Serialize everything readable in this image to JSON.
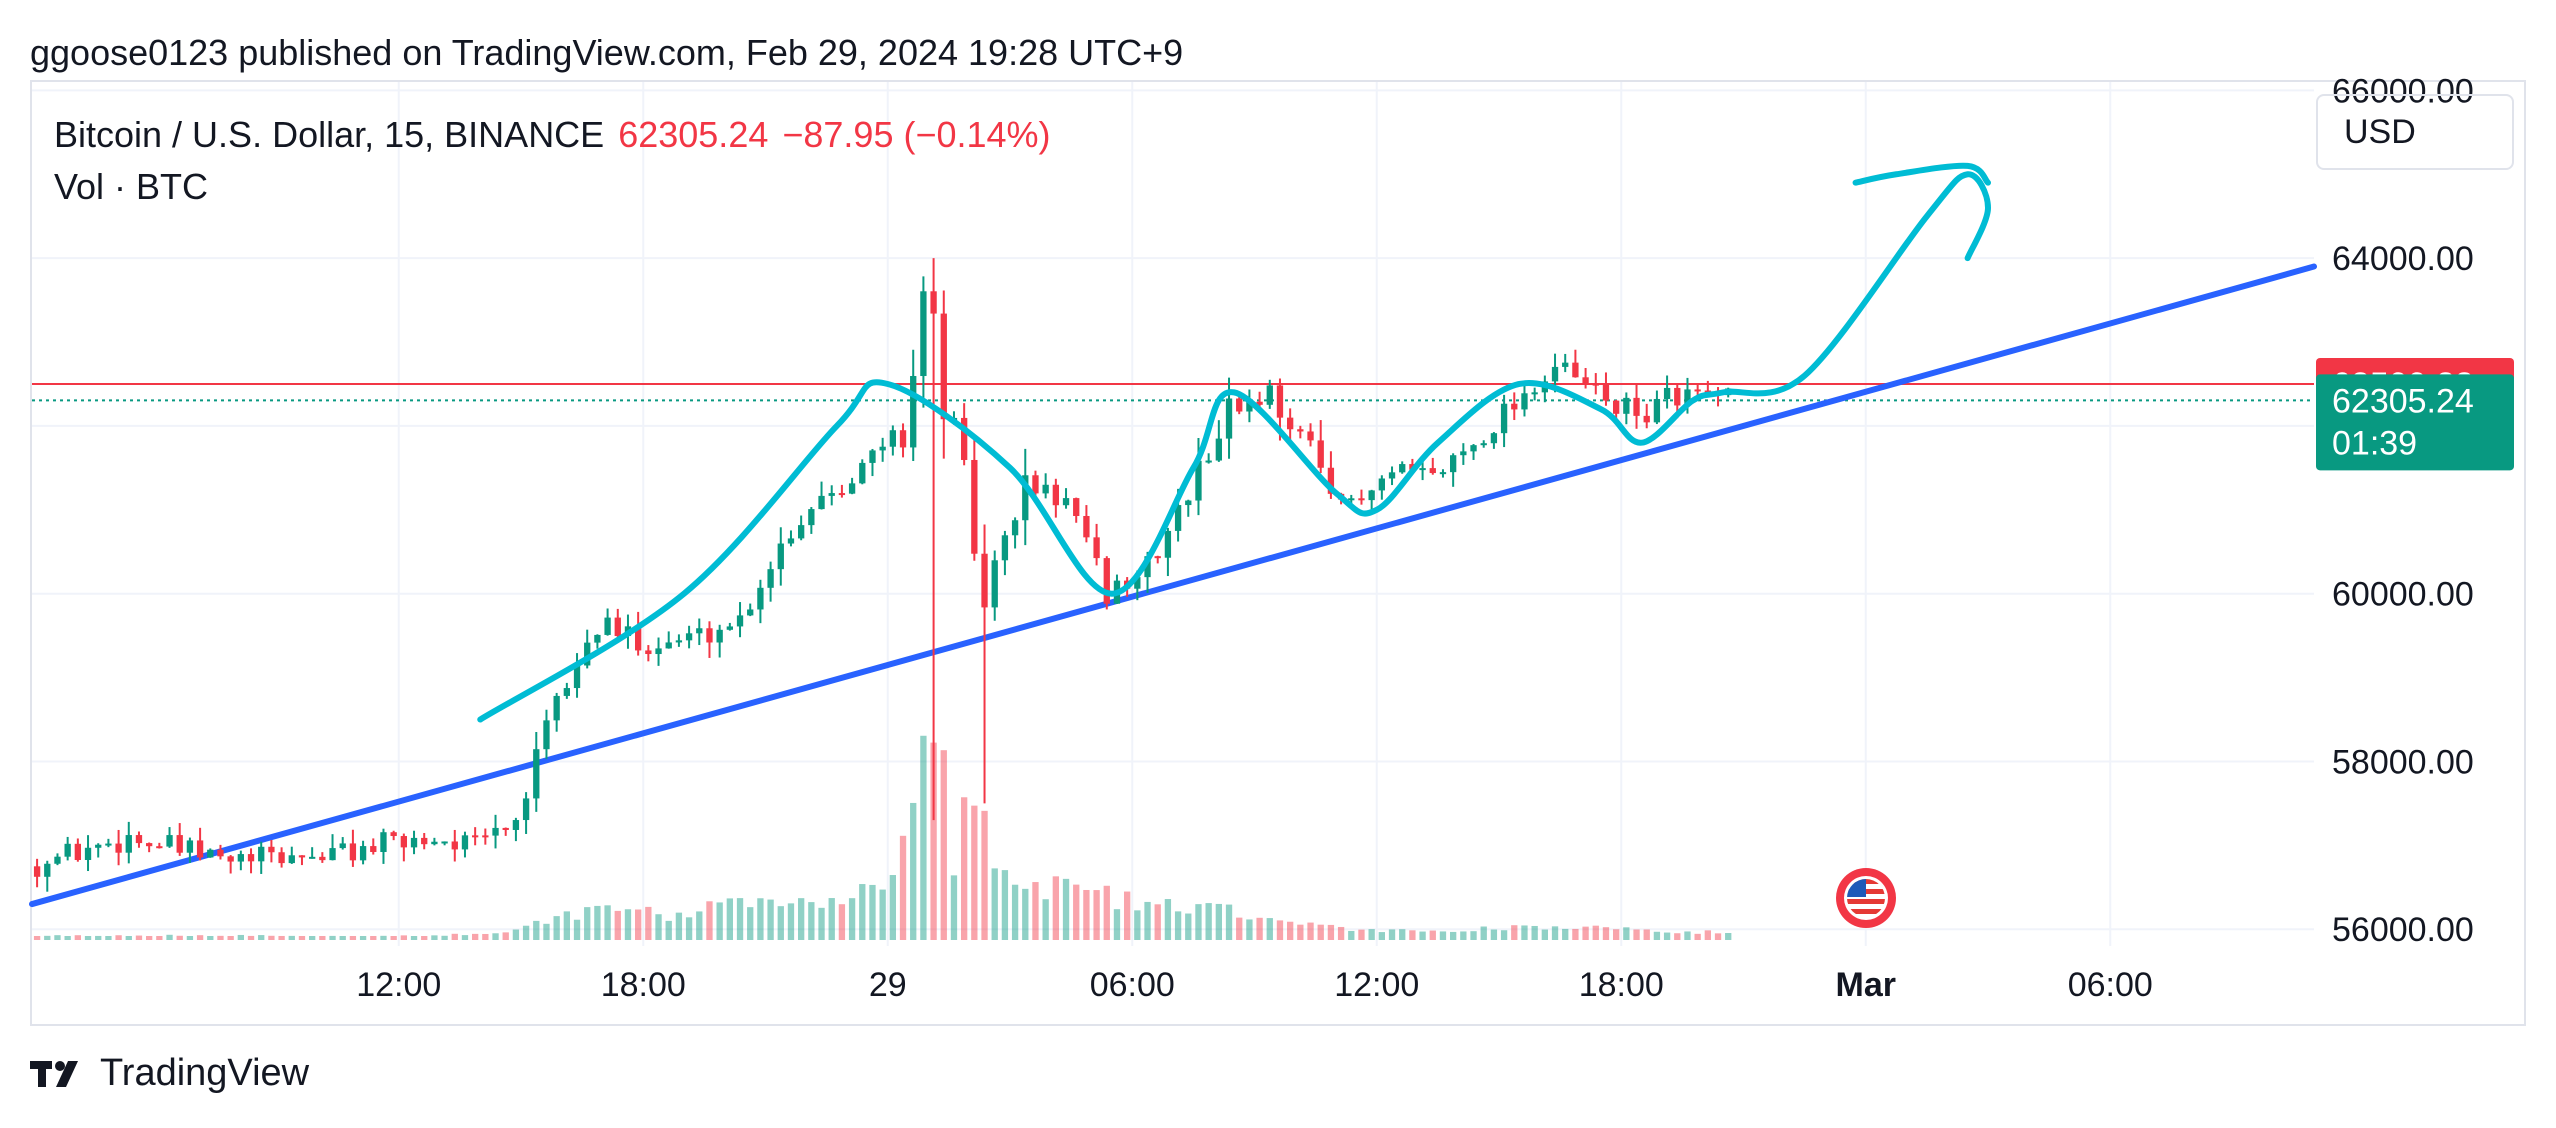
{
  "publisher_line": "ggoose0123 published on TradingView.com, Feb 29, 2024 19:28 UTC+9",
  "legend": {
    "symbol": "Bitcoin / U.S. Dollar, 15, BINANCE",
    "price": "62305.24",
    "change": "−87.95 (−0.14%)",
    "volume_label": "Vol · BTC"
  },
  "currency_button": "USD",
  "footer": {
    "brand": "TradingView"
  },
  "colors": {
    "up": "#089981",
    "down": "#f23645",
    "trendline": "#2962ff",
    "drawing": "#00bcd4",
    "grid": "#f0f3fa"
  },
  "event_icon": "us-flag-icon",
  "chart_data": {
    "type": "candlestick",
    "symbol": "BTCUSD",
    "interval": "15",
    "exchange": "BINANCE",
    "y_axis": {
      "ticks": [
        {
          "value": 56000,
          "label": "56000.00"
        },
        {
          "value": 58000,
          "label": "58000.00"
        },
        {
          "value": 60000,
          "label": "60000.00"
        },
        {
          "value": 64000,
          "label": "64000.00"
        },
        {
          "value": 66000,
          "label": "66000.00"
        }
      ],
      "range": [
        55800,
        66100
      ]
    },
    "x_axis": {
      "ticks": [
        {
          "t": 36,
          "label": "12:00",
          "bold": false
        },
        {
          "t": 60,
          "label": "18:00",
          "bold": false
        },
        {
          "t": 84,
          "label": "29",
          "bold": false
        },
        {
          "t": 108,
          "label": "06:00",
          "bold": false
        },
        {
          "t": 132,
          "label": "12:00",
          "bold": false
        },
        {
          "t": 156,
          "label": "18:00",
          "bold": false
        },
        {
          "t": 180,
          "label": "Mar",
          "bold": true
        },
        {
          "t": 204,
          "label": "06:00",
          "bold": false
        }
      ],
      "range": [
        0,
        224
      ],
      "unit": "15-minute bars since Feb 28 03:00"
    },
    "grid": true,
    "price_tags": [
      {
        "value": 62500.28,
        "label": "62500.28",
        "color": "#f23645"
      },
      {
        "value": 62305.24,
        "label": "62305.24",
        "sublabel": "01:39",
        "color": "#089981"
      }
    ],
    "horizontal_lines": [
      {
        "value": 62500.28,
        "color": "#f23645",
        "style": "solid"
      },
      {
        "value": 62305.24,
        "color": "#089981",
        "style": "dotted"
      }
    ],
    "trendline": {
      "points": [
        [
          0,
          56300
        ],
        [
          224,
          63900
        ]
      ],
      "color": "#2962ff"
    },
    "drawing_path": [
      [
        44,
        58500
      ],
      [
        64,
        60000
      ],
      [
        79,
        62000
      ],
      [
        84,
        62500
      ],
      [
        96,
        61500
      ],
      [
        106,
        60000
      ],
      [
        114,
        61500
      ],
      [
        118,
        62400
      ],
      [
        128,
        61200
      ],
      [
        132,
        61000
      ],
      [
        138,
        61800
      ],
      [
        146,
        62500
      ],
      [
        154,
        62200
      ],
      [
        158,
        61800
      ],
      [
        163,
        62300
      ],
      [
        166,
        62400
      ],
      [
        174,
        62600
      ],
      [
        186,
        64500
      ],
      [
        190,
        65000
      ],
      [
        192,
        64600
      ],
      [
        190,
        64000
      ]
    ],
    "drawing_tip": [
      [
        179,
        64900
      ],
      [
        183,
        65000
      ],
      [
        190,
        65100
      ],
      [
        192,
        64900
      ]
    ],
    "anchors": [
      [
        0,
        56750
      ],
      [
        10,
        57100
      ],
      [
        16,
        56900
      ],
      [
        20,
        56800
      ],
      [
        30,
        56900
      ],
      [
        40,
        57100
      ],
      [
        44,
        57000
      ],
      [
        48,
        57300
      ],
      [
        52,
        58700
      ],
      [
        56,
        59600
      ],
      [
        62,
        59400
      ],
      [
        66,
        59500
      ],
      [
        70,
        59700
      ],
      [
        74,
        60600
      ],
      [
        78,
        61200
      ],
      [
        82,
        61500
      ],
      [
        86,
        62000
      ],
      [
        88,
        63600
      ],
      [
        92,
        61200
      ],
      [
        94,
        60000
      ],
      [
        98,
        61300
      ],
      [
        102,
        61100
      ],
      [
        106,
        60000
      ],
      [
        110,
        60300
      ],
      [
        114,
        61200
      ],
      [
        118,
        62200
      ],
      [
        122,
        62400
      ],
      [
        126,
        61700
      ],
      [
        130,
        61000
      ],
      [
        134,
        61400
      ],
      [
        138,
        61400
      ],
      [
        142,
        61800
      ],
      [
        146,
        62300
      ],
      [
        150,
        62700
      ],
      [
        154,
        62400
      ],
      [
        158,
        62100
      ],
      [
        162,
        62400
      ],
      [
        166,
        62300
      ]
    ],
    "volume_anchors": [
      [
        0,
        18
      ],
      [
        40,
        18
      ],
      [
        46,
        40
      ],
      [
        50,
        90
      ],
      [
        56,
        140
      ],
      [
        62,
        110
      ],
      [
        70,
        160
      ],
      [
        78,
        180
      ],
      [
        84,
        260
      ],
      [
        86,
        600
      ],
      [
        88,
        950
      ],
      [
        90,
        380
      ],
      [
        92,
        720
      ],
      [
        94,
        300
      ],
      [
        98,
        220
      ],
      [
        102,
        260
      ],
      [
        106,
        180
      ],
      [
        112,
        140
      ],
      [
        118,
        120
      ],
      [
        124,
        70
      ],
      [
        130,
        40
      ],
      [
        140,
        45
      ],
      [
        148,
        60
      ],
      [
        154,
        50
      ],
      [
        160,
        40
      ],
      [
        166,
        30
      ]
    ]
  }
}
